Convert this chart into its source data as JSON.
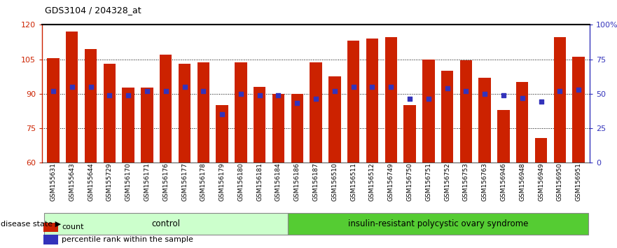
{
  "title": "GDS3104 / 204328_at",
  "samples": [
    "GSM155631",
    "GSM155643",
    "GSM155644",
    "GSM155729",
    "GSM156170",
    "GSM156171",
    "GSM156176",
    "GSM156177",
    "GSM156178",
    "GSM156179",
    "GSM156180",
    "GSM156181",
    "GSM156184",
    "GSM156186",
    "GSM156187",
    "GSM156510",
    "GSM156511",
    "GSM156512",
    "GSM156749",
    "GSM156750",
    "GSM156751",
    "GSM156752",
    "GSM156753",
    "GSM156763",
    "GSM156946",
    "GSM156948",
    "GSM156949",
    "GSM156950",
    "GSM156951"
  ],
  "bar_heights": [
    105.5,
    117.0,
    109.5,
    103.0,
    92.5,
    92.5,
    107.0,
    103.0,
    103.5,
    85.0,
    103.5,
    93.0,
    90.0,
    90.0,
    103.5,
    97.5,
    113.0,
    114.0,
    114.5,
    85.0,
    105.0,
    100.0,
    104.5,
    97.0,
    83.0,
    95.0,
    70.5,
    114.5,
    106.0
  ],
  "percentile_values": [
    52,
    55,
    55,
    49,
    49,
    52,
    52,
    55,
    52,
    35,
    50,
    49,
    49,
    43,
    46,
    52,
    55,
    55,
    55,
    46,
    46,
    54,
    52,
    50,
    49,
    47,
    44,
    52,
    53
  ],
  "ylim_left": [
    60,
    120
  ],
  "ylim_right": [
    0,
    100
  ],
  "yticks_left": [
    60,
    75,
    90,
    105,
    120
  ],
  "yticks_right": [
    0,
    25,
    50,
    75,
    100
  ],
  "ytick_right_labels": [
    "0",
    "25",
    "50",
    "75",
    "100%"
  ],
  "control_count": 13,
  "disease_count": 16,
  "bar_color": "#CC2200",
  "dot_color": "#3333BB",
  "control_label": "control",
  "disease_label": "insulin-resistant polycystic ovary syndrome",
  "control_bg": "#CCFFCC",
  "disease_bg": "#55CC33",
  "legend_count_label": "count",
  "legend_pct_label": "percentile rank within the sample",
  "disease_state_label": "disease state"
}
